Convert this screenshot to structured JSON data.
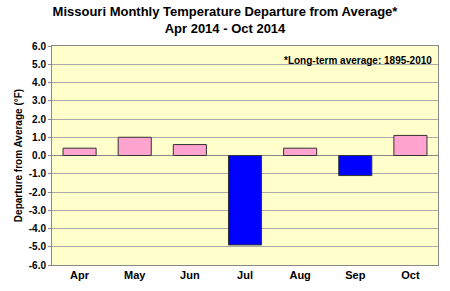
{
  "chart_data": {
    "type": "bar",
    "title": "Missouri Monthly Temperature Departure from Average*",
    "subtitle": "Apr 2014 - Oct 2014",
    "y_label": "Departure from Average (°F)",
    "annotation": "*Long-term average: 1895-2010",
    "categories": [
      "Apr",
      "May",
      "Jun",
      "Jul",
      "Aug",
      "Sep",
      "Oct"
    ],
    "values": [
      0.4,
      1.0,
      0.6,
      -4.9,
      0.4,
      -1.1,
      1.1
    ],
    "colors": [
      "#ffa3cf",
      "#ffa3cf",
      "#ffa3cf",
      "#0000ff",
      "#ffa3cf",
      "#0000ff",
      "#ffa3cf"
    ],
    "ylim": [
      -6,
      6
    ],
    "yticks": [
      {
        "value": -6,
        "label": "-6.0"
      },
      {
        "value": -5,
        "label": "-5.0"
      },
      {
        "value": -4,
        "label": "-4.0"
      },
      {
        "value": -3,
        "label": "-3.0"
      },
      {
        "value": -2,
        "label": "-2.0"
      },
      {
        "value": -1,
        "label": "-1.0"
      },
      {
        "value": 0,
        "label": "0.0"
      },
      {
        "value": 1,
        "label": "1.0"
      },
      {
        "value": 2,
        "label": "2.0"
      },
      {
        "value": 3,
        "label": "3.0"
      },
      {
        "value": 4,
        "label": "4.0"
      },
      {
        "value": 5,
        "label": "5.0"
      },
      {
        "value": 6,
        "label": "6.0"
      }
    ],
    "grid": true
  }
}
